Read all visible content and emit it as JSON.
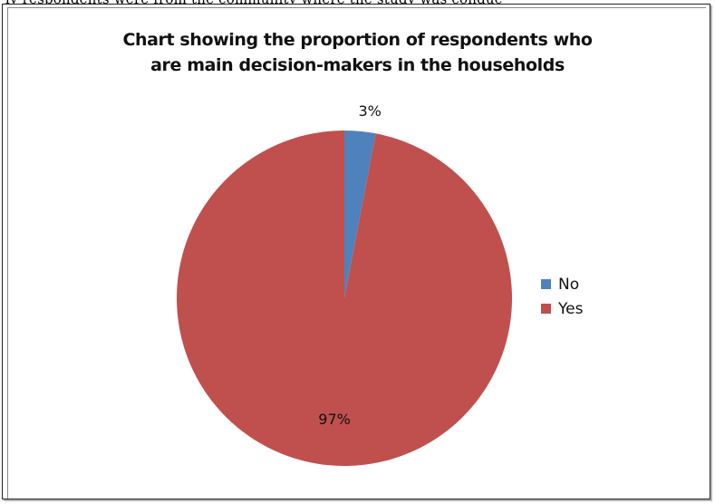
{
  "header_fragment": "ly respondents were from the community where the study was conduc",
  "chart_data": {
    "type": "pie",
    "title": [
      "Chart showing the proportion of respondents who",
      "are main decision-makers in the households"
    ],
    "categories": [
      "No",
      "Yes"
    ],
    "values": [
      3,
      97
    ],
    "data_labels": [
      "3%",
      "97%"
    ],
    "colors": [
      "#4f81bd",
      "#c0504d"
    ],
    "legend_position": "right"
  }
}
